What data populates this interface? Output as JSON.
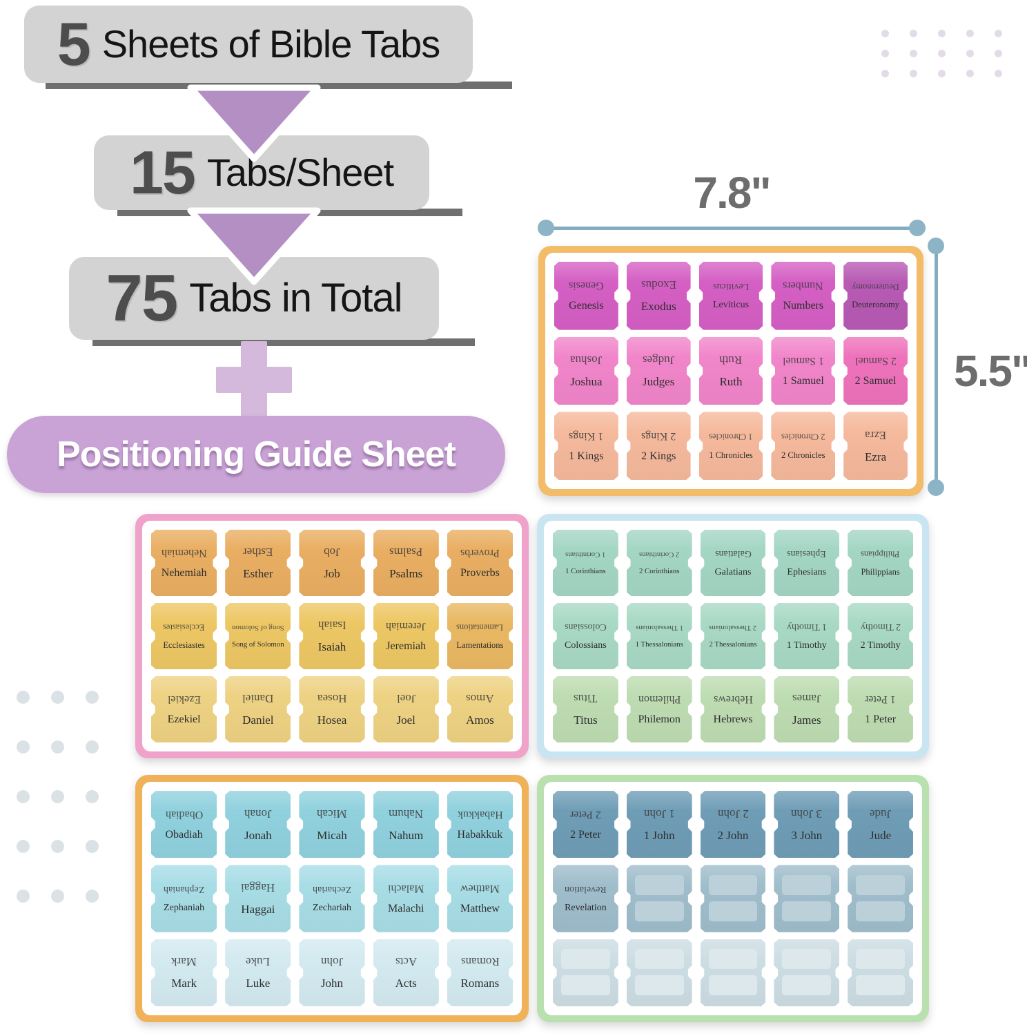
{
  "headline": {
    "banner1": {
      "number": "5",
      "text": "Sheets of Bible Tabs"
    },
    "banner2": {
      "number": "15",
      "text": "Tabs/Sheet"
    },
    "banner3": {
      "number": "75",
      "text": "Tabs in Total"
    },
    "guide_banner": "Positioning Guide Sheet"
  },
  "dimensions": {
    "width_label": "7.8\"",
    "height_label": "5.5\""
  },
  "sheets": [
    {
      "id": "sheet-1",
      "position": "top-right",
      "border_color": "#f2bc69",
      "rows": [
        {
          "color": "#d55fc4",
          "tab_color_overrides": {
            "4": "#b75ab4"
          },
          "tabs": [
            "Genesis",
            "Exodus",
            "Leviticus",
            "Numbers",
            "Deuteronomy"
          ]
        },
        {
          "color": "#f185ca",
          "tab_color_overrides": {
            "4": "#ee72bb"
          },
          "tabs": [
            "Joshua",
            "Judges",
            "Ruth",
            "1 Samuel",
            "2 Samuel"
          ]
        },
        {
          "color": "#f5b99c",
          "tabs": [
            "1 Kings",
            "2 Kings",
            "1 Chronicles",
            "2 Chronicles",
            "Ezra"
          ]
        }
      ]
    },
    {
      "id": "sheet-2",
      "position": "middle-left",
      "border_color": "#f0a3ca",
      "rows": [
        {
          "color": "#e9ae62",
          "tabs": [
            "Nehemiah",
            "Esther",
            "Job",
            "Psalms",
            "Proverbs"
          ]
        },
        {
          "color": "#edc764",
          "tab_color_overrides": {
            "4": "#e9b863"
          },
          "tabs": [
            "Ecclesiastes",
            "Song of Solomon",
            "Isaiah",
            "Jeremiah",
            "Lamentations"
          ]
        },
        {
          "color": "#eed283",
          "tabs": [
            "Ezekiel",
            "Daniel",
            "Hosea",
            "Joel",
            "Amos"
          ]
        }
      ]
    },
    {
      "id": "sheet-3",
      "position": "middle-right",
      "border_color": "#c9e5f2",
      "rows": [
        {
          "color": "#a4d6c4",
          "tabs": [
            "1 Corinthians",
            "2 Corinthians",
            "Galatians",
            "Ephesians",
            "Philippians"
          ]
        },
        {
          "color": "#a8d9c5",
          "tabs": [
            "Colossians",
            "1 Thessalonians",
            "2 Thessalonians",
            "1 Timothy",
            "2 Timothy"
          ]
        },
        {
          "color": "#bedcb2",
          "tabs": [
            "Titus",
            "Philemon",
            "Hebrews",
            "James",
            "1 Peter"
          ]
        }
      ]
    },
    {
      "id": "sheet-4",
      "position": "bottom-left",
      "border_color": "#efb258",
      "rows": [
        {
          "color": "#90d1de",
          "tabs": [
            "Obadiah",
            "Jonah",
            "Micah",
            "Nahum",
            "Habakkuk"
          ]
        },
        {
          "color": "#a8dde6",
          "tabs": [
            "Zephaniah",
            "Haggai",
            "Zechariah",
            "Malachi",
            "Matthew"
          ]
        },
        {
          "color": "#d3eaf0",
          "tabs": [
            "Mark",
            "Luke",
            "John",
            "Acts",
            "Romans"
          ]
        }
      ]
    },
    {
      "id": "sheet-5",
      "position": "bottom-right",
      "border_color": "#b9e1b0",
      "rows": [
        {
          "color": "#6f9db6",
          "tabs": [
            "2 Peter",
            "1 John",
            "2 John",
            "3 John",
            "Jude"
          ]
        },
        {
          "color": "#9fbdcb",
          "blank_inner_color": "#bcd0d9",
          "tabs": [
            "Revelation",
            "",
            "",
            "",
            ""
          ]
        },
        {
          "color": "#ccdde3",
          "blank_inner_color": "#dde8ec",
          "tabs": [
            "",
            "",
            "",
            "",
            ""
          ]
        }
      ]
    }
  ],
  "decor": {
    "banner_bg": "#d3d3d3",
    "banner_strip_color": "#6f6f6f",
    "arrow_color": "#b48fc3",
    "plus_color": "#d5b9dd",
    "guide_banner_bg": "#c9a2d6",
    "dimension_line_color": "#85adc2",
    "dimension_dot_color": "#8db3c7",
    "dots_top_right": {
      "rows": 3,
      "cols": 5,
      "color": "#e4dbe9"
    },
    "dots_left": {
      "rows": 5,
      "cols": 3,
      "color": "#dbe2e6"
    }
  }
}
